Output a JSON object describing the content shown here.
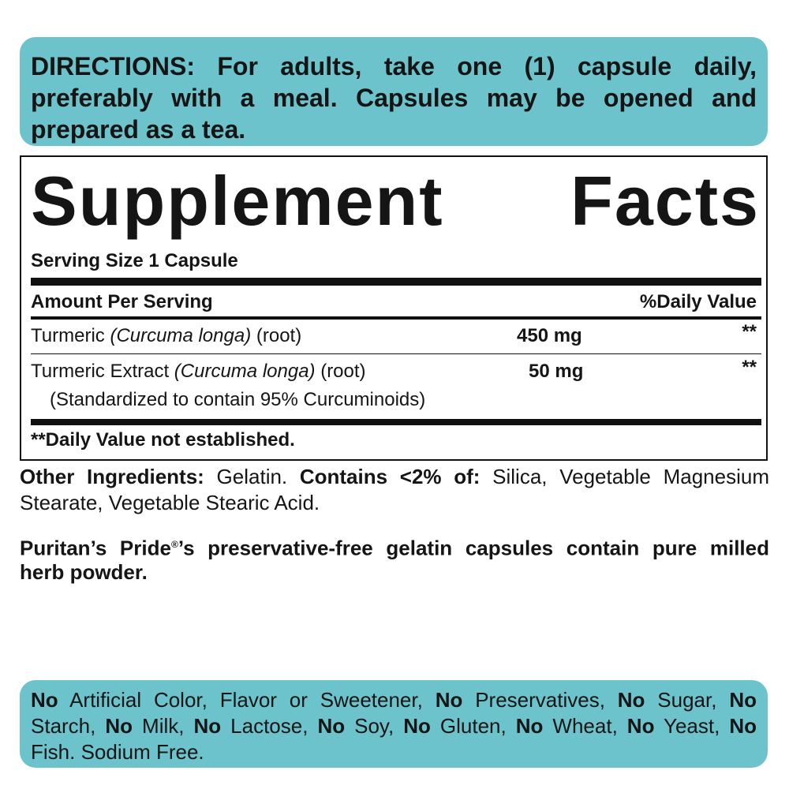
{
  "directions": {
    "lines": [
      "DIRECTIONS: For adults, take one (1) capsule daily,",
      "preferably with a meal. Capsules may be opened and",
      "prepared as a tea."
    ]
  },
  "facts": {
    "title": "Supplement Facts",
    "serving_size": "Serving Size 1 Capsule",
    "header_amount": "Amount Per Serving",
    "header_dv": "%Daily Value",
    "rows": [
      {
        "name": "Turmeric ",
        "latin": "(Curcuma longa)",
        "part": " (root)",
        "amount": "450 mg",
        "dv": "**"
      },
      {
        "name": "Turmeric Extract ",
        "latin": "(Curcuma longa)",
        "part": " (root)",
        "note": "(Standardized to contain 95% Curcuminoids)",
        "amount": "50 mg",
        "dv": "**"
      }
    ],
    "footnote": "**Daily Value not established."
  },
  "other_ingredients": {
    "label": "Other Ingredients:",
    "text1": " Gelatin. ",
    "contains_label": "Contains <2% of:",
    "text2": " Silica, Vegetable Magnesium",
    "line2": "Stearate, Vegetable Stearic Acid."
  },
  "brand_note": {
    "line1_a": "Puritan’s Pride",
    "registered": "®",
    "line1_b": "’s preservative-free gelatin capsules contain pure milled",
    "line2": "herb powder."
  },
  "free_from": {
    "lines": [
      [
        {
          "b": "No"
        },
        {
          "t": " Artificial Color, Flavor or Sweetener, "
        },
        {
          "b": "No"
        },
        {
          "t": " Preservatives, "
        },
        {
          "b": "No"
        },
        {
          "t": " Sugar, "
        },
        {
          "b": "No"
        }
      ],
      [
        {
          "t": "Starch, "
        },
        {
          "b": "No"
        },
        {
          "t": " Milk, "
        },
        {
          "b": "No"
        },
        {
          "t": " Lactose, "
        },
        {
          "b": "No"
        },
        {
          "t": " Soy, "
        },
        {
          "b": "No"
        },
        {
          "t": " Gluten, "
        },
        {
          "b": "No"
        },
        {
          "t": " Wheat, "
        },
        {
          "b": "No"
        },
        {
          "t": " Yeast, "
        },
        {
          "b": "No"
        }
      ],
      [
        {
          "t": "Fish. Sodium Free."
        }
      ]
    ]
  },
  "colors": {
    "accent": "#6cc3cb",
    "text": "#151515"
  }
}
